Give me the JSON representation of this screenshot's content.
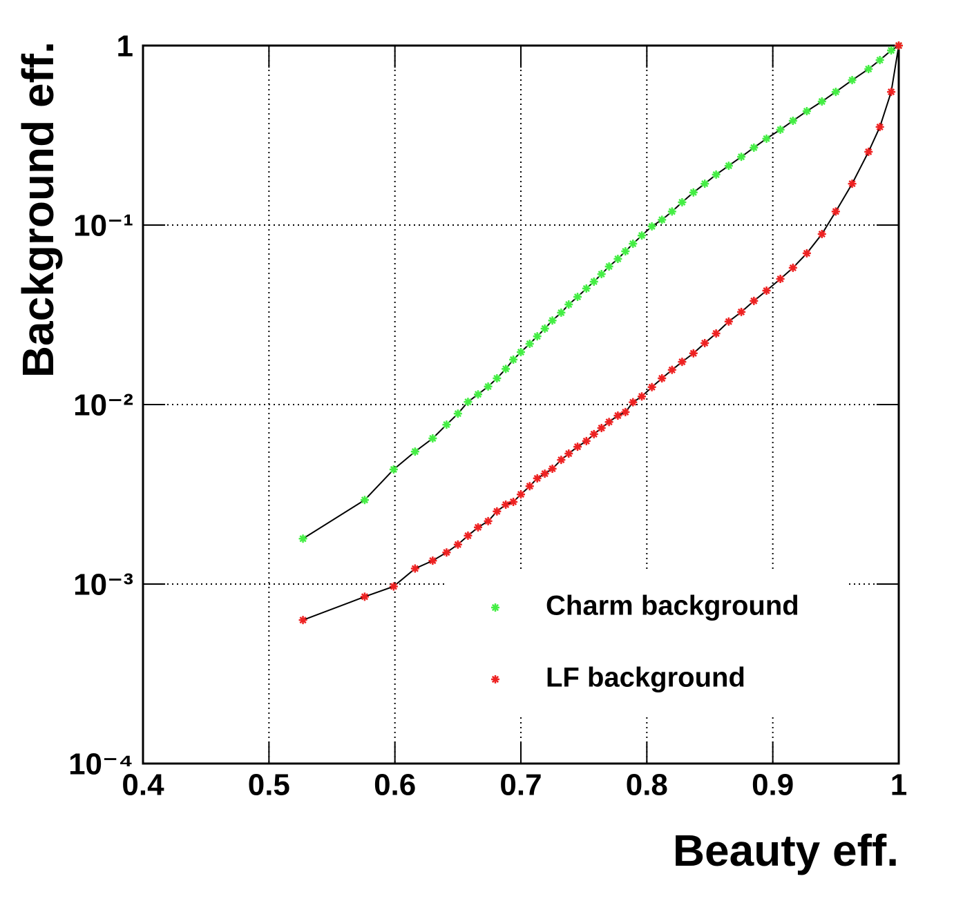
{
  "chart_data": {
    "type": "line",
    "x_label": "Beauty eff.",
    "y_label": "Background eff.",
    "xlim": [
      0.4,
      1
    ],
    "ylim": [
      0.0001,
      1
    ],
    "ylog": true,
    "grid": true,
    "legend": "lower right",
    "xticks": [
      0.4,
      0.5,
      0.6,
      0.7,
      0.8,
      0.9,
      1
    ],
    "yticks": [
      {
        "value": 0.0001,
        "label": "10⁻⁴"
      },
      {
        "value": 0.001,
        "label": "10⁻³"
      },
      {
        "value": 0.01,
        "label": "10⁻²"
      },
      {
        "value": 0.1,
        "label": "10⁻¹"
      },
      1
    ],
    "x": [
      0.527,
      0.576,
      0.599,
      0.616,
      0.63,
      0.641,
      0.65,
      0.658,
      0.666,
      0.674,
      0.681,
      0.688,
      0.694,
      0.7,
      0.707,
      0.713,
      0.719,
      0.725,
      0.732,
      0.738,
      0.745,
      0.752,
      0.758,
      0.764,
      0.77,
      0.777,
      0.783,
      0.789,
      0.796,
      0.804,
      0.812,
      0.82,
      0.828,
      0.837,
      0.846,
      0.855,
      0.865,
      0.875,
      0.885,
      0.895,
      0.906,
      0.916,
      0.927,
      0.939,
      0.95,
      0.963,
      0.976,
      0.985,
      0.994,
      1.0
    ],
    "series": [
      {
        "name": "Charm background",
        "color": "#44ee44",
        "values": [
          0.00179,
          0.00294,
          0.00435,
          0.00547,
          0.00648,
          0.00773,
          0.0089,
          0.01035,
          0.0114,
          0.0126,
          0.014,
          0.0158,
          0.0178,
          0.0196,
          0.0218,
          0.024,
          0.0265,
          0.0294,
          0.0325,
          0.0361,
          0.0398,
          0.0443,
          0.0484,
          0.0533,
          0.0588,
          0.0648,
          0.0714,
          0.0787,
          0.0875,
          0.0983,
          0.107,
          0.119,
          0.134,
          0.152,
          0.17,
          0.191,
          0.214,
          0.24,
          0.27,
          0.303,
          0.34,
          0.381,
          0.431,
          0.488,
          0.552,
          0.642,
          0.74,
          0.83,
          0.94,
          1
        ]
      },
      {
        "name": "LF background",
        "color": "#ee2222",
        "values": [
          0.00063,
          0.00085,
          0.00097,
          0.00122,
          0.00135,
          0.0015,
          0.00166,
          0.00186,
          0.00207,
          0.00224,
          0.00254,
          0.00277,
          0.00287,
          0.00316,
          0.00351,
          0.00388,
          0.00412,
          0.00439,
          0.00492,
          0.00533,
          0.00582,
          0.00626,
          0.00684,
          0.0074,
          0.008,
          0.00868,
          0.00908,
          0.0103,
          0.0111,
          0.0125,
          0.014,
          0.0156,
          0.0173,
          0.0193,
          0.022,
          0.0249,
          0.029,
          0.0328,
          0.0378,
          0.0431,
          0.0501,
          0.0578,
          0.0696,
          0.0891,
          0.119,
          0.17,
          0.256,
          0.352,
          0.552,
          1
        ]
      }
    ]
  }
}
